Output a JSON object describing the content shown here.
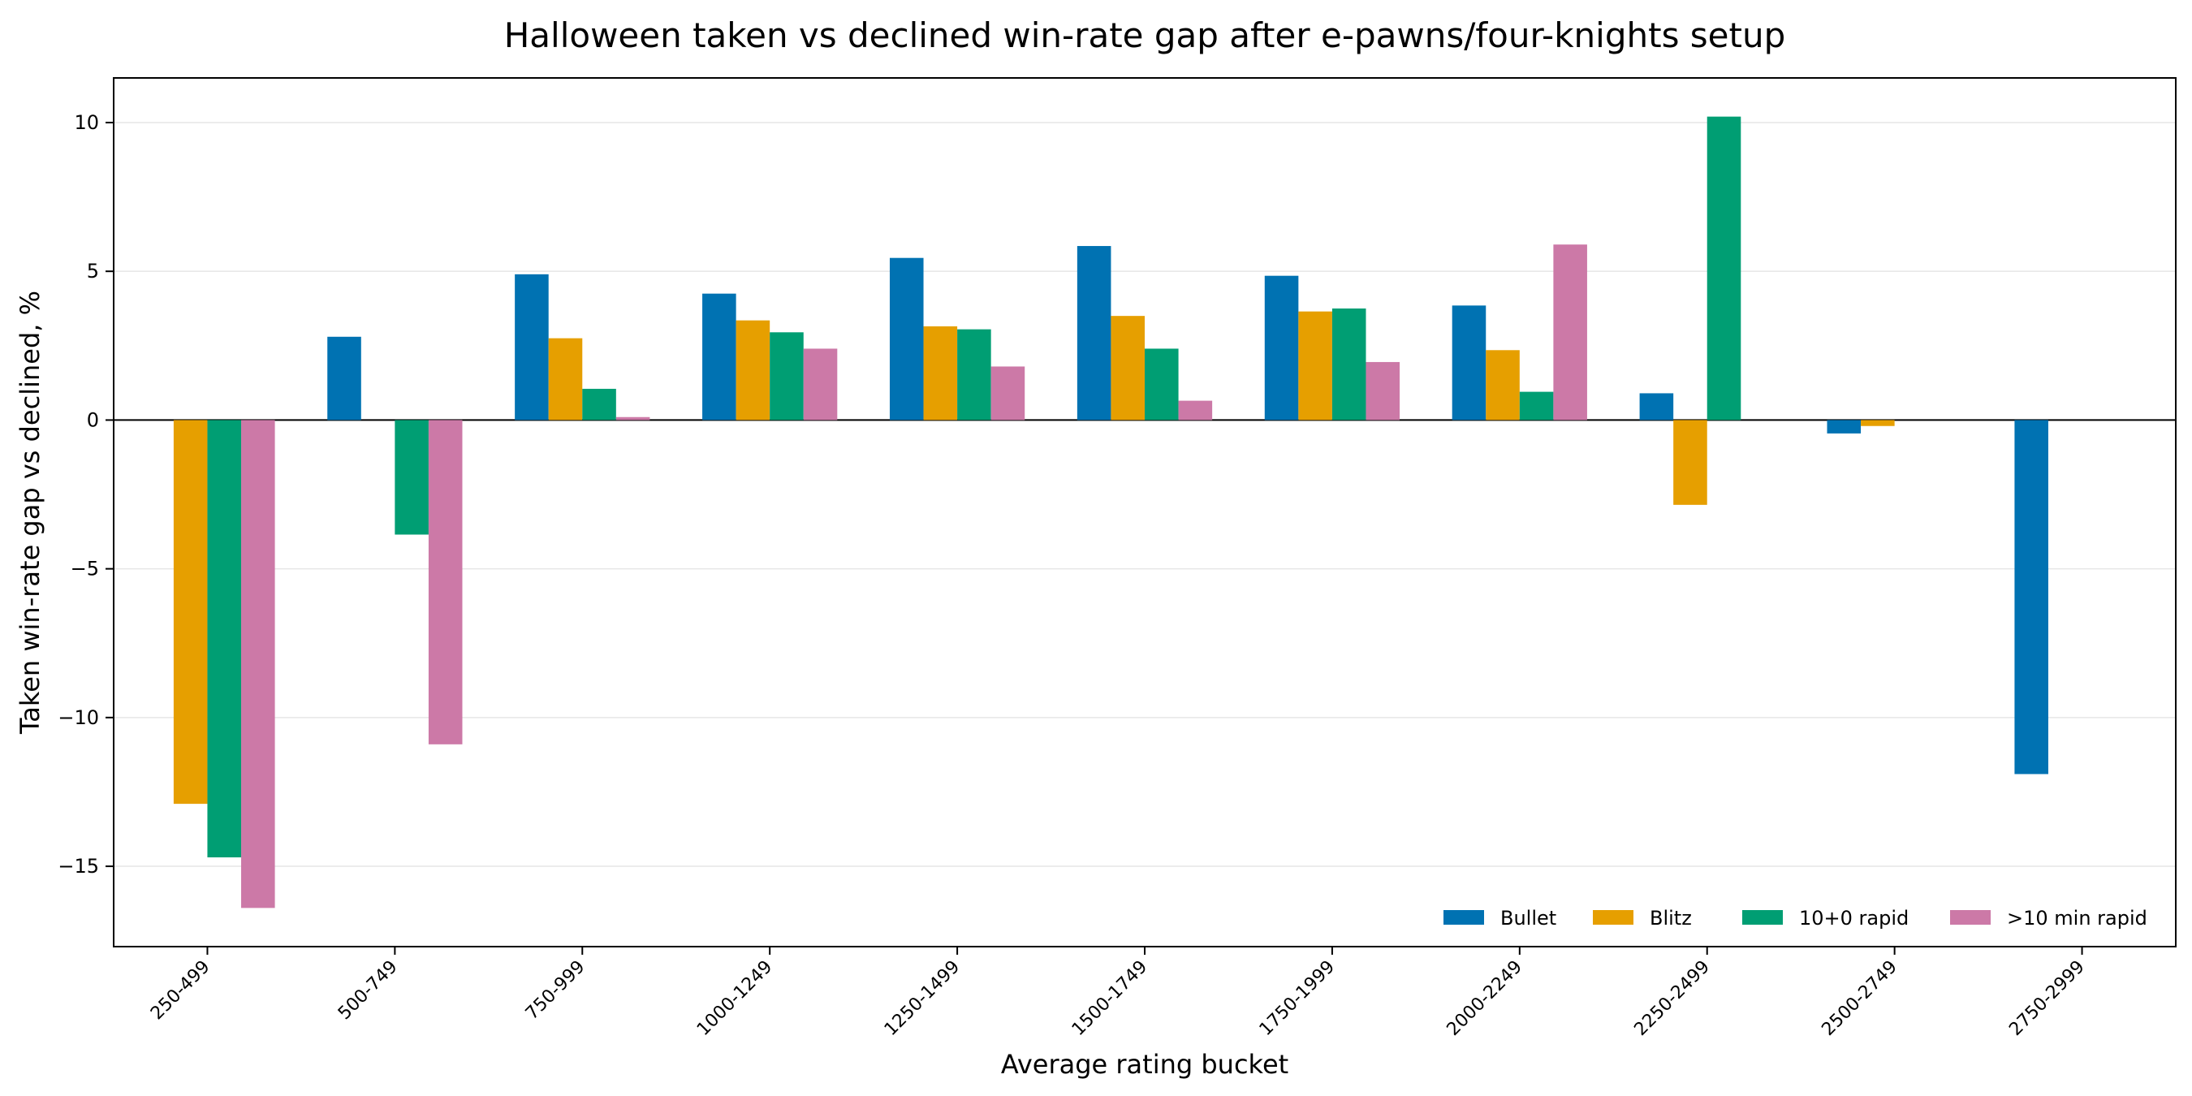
{
  "chart_data": {
    "type": "bar",
    "title": "Halloween taken vs declined win-rate gap after e-pawns/four-knights setup",
    "xlabel": "Average rating bucket",
    "ylabel": "Taken win-rate gap vs declined, %",
    "categories": [
      "250-499",
      "500-749",
      "750-999",
      "1000-1249",
      "1250-1499",
      "1500-1749",
      "1750-1999",
      "2000-2249",
      "2250-2499",
      "2500-2749",
      "2750-2999"
    ],
    "series": [
      {
        "name": "Bullet",
        "color": "#0072b2",
        "values": [
          null,
          2.8,
          4.9,
          4.25,
          5.45,
          5.85,
          4.85,
          3.85,
          0.9,
          -0.45,
          -11.9
        ]
      },
      {
        "name": "Blitz",
        "color": "#e69f00",
        "values": [
          -12.9,
          null,
          2.75,
          3.35,
          3.15,
          3.5,
          3.65,
          2.35,
          -2.85,
          -0.2,
          null
        ]
      },
      {
        "name": "10+0 rapid",
        "color": "#009e73",
        "values": [
          -14.7,
          -3.85,
          1.05,
          2.95,
          3.05,
          2.4,
          3.75,
          0.95,
          10.2,
          null,
          null
        ]
      },
      {
        "name": ">10 min rapid",
        "color": "#cc79a7",
        "values": [
          -16.4,
          -10.9,
          0.1,
          2.4,
          1.8,
          0.65,
          1.95,
          5.9,
          null,
          null,
          null
        ]
      }
    ],
    "ylim": [
      -17.7,
      11.5
    ],
    "yticks": [
      -15,
      -10,
      -5,
      0,
      5,
      10
    ],
    "ytick_labels": [
      "−15",
      "−10",
      "−5",
      "0",
      "5",
      "10"
    ],
    "grid": "horizontal",
    "zero_line": true,
    "legend_position": "lower-right"
  }
}
